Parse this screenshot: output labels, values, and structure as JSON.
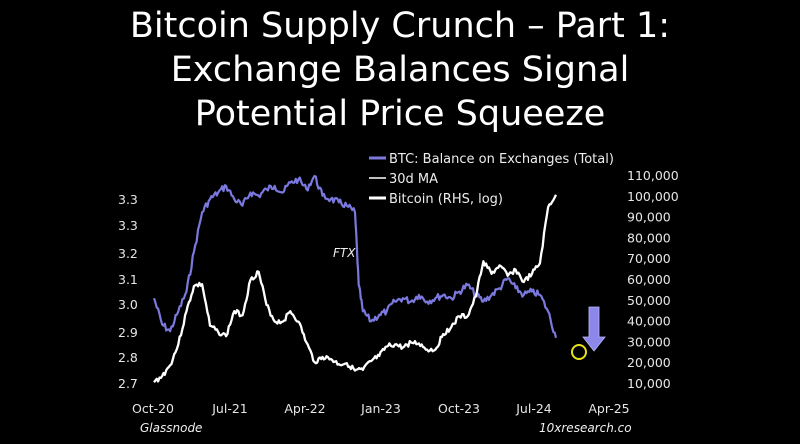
{
  "title": {
    "line1": "Bitcoin Supply Crunch – Part 1:",
    "line2": "Exchange Balances Signal",
    "line3": "Potential Price Squeeze"
  },
  "footer": {
    "source_left": "Glassnode",
    "source_right": "10xresearch.co"
  },
  "colors": {
    "balance": "#7b78de",
    "ma": "#ffffff",
    "price": "#ffffff",
    "arrow": "#8c87e8",
    "circle": "#e8e21a",
    "background": "#000000"
  },
  "chart_data": {
    "type": "line",
    "xlabel": "",
    "ylabel_left": "",
    "ylabel_right": "",
    "x_ticks": [
      "Oct-20",
      "Jul-21",
      "Apr-22",
      "Jan-23",
      "Oct-23",
      "Jul-24",
      "Apr-25"
    ],
    "y_left_ticks": [
      "2.7",
      "2.8",
      "2.9",
      "3.0",
      "3.1",
      "3.2",
      "3.3",
      "3.3"
    ],
    "y_right_ticks": [
      "10,000",
      "20,000",
      "30,000",
      "40,000",
      "50,000",
      "60,000",
      "70,000",
      "80,000",
      "90,000",
      "100,000",
      "110,000"
    ],
    "xlim": [
      "2020-10-01",
      "2025-04-01"
    ],
    "ylim_right": [
      10000,
      110000
    ],
    "grid": false,
    "legend": {
      "placement": "top-right",
      "entries": [
        "BTC: Balance on Exchanges (Total)",
        "30d MA",
        "Bitcoin (RHS, log)"
      ]
    },
    "annotations": [
      {
        "text": "FTX",
        "x": "2022-11-08"
      }
    ],
    "series": [
      {
        "name": "BTC: Balance on Exchanges (Total)",
        "axis": "left",
        "x": [
          "2020-10-01",
          "2020-11-01",
          "2020-12-01",
          "2021-01-01",
          "2021-02-01",
          "2021-03-01",
          "2021-04-01",
          "2021-05-01",
          "2021-06-01",
          "2021-07-01",
          "2021-08-01",
          "2021-09-01",
          "2021-10-01",
          "2021-11-01",
          "2021-12-01",
          "2022-01-01",
          "2022-02-01",
          "2022-03-01",
          "2022-04-01",
          "2022-05-01",
          "2022-06-01",
          "2022-07-01",
          "2022-08-01",
          "2022-09-01",
          "2022-10-01",
          "2022-11-01",
          "2022-11-15",
          "2022-12-01",
          "2023-01-01",
          "2023-02-01",
          "2023-03-01",
          "2023-04-01",
          "2023-05-01",
          "2023-06-01",
          "2023-07-01",
          "2023-08-01",
          "2023-09-01",
          "2023-10-01",
          "2023-11-01",
          "2023-12-01",
          "2024-01-01",
          "2024-02-01",
          "2024-03-01",
          "2024-04-01",
          "2024-05-01",
          "2024-06-01",
          "2024-07-01",
          "2024-08-01",
          "2024-09-01",
          "2024-10-01",
          "2024-11-01",
          "2024-12-01"
        ],
        "values": [
          2.96,
          2.88,
          2.86,
          2.92,
          2.98,
          3.1,
          3.22,
          3.26,
          3.28,
          3.3,
          3.26,
          3.24,
          3.28,
          3.27,
          3.29,
          3.3,
          3.28,
          3.31,
          3.32,
          3.29,
          3.33,
          3.27,
          3.26,
          3.25,
          3.24,
          3.22,
          3.0,
          2.92,
          2.89,
          2.91,
          2.92,
          2.95,
          2.96,
          2.95,
          2.97,
          2.95,
          2.96,
          2.97,
          2.96,
          2.98,
          3.0,
          2.97,
          2.95,
          2.97,
          2.99,
          3.02,
          2.99,
          2.97,
          2.98,
          2.97,
          2.92,
          2.84
        ]
      },
      {
        "name": "Bitcoin (RHS, log)",
        "axis": "right",
        "x": [
          "2020-10-01",
          "2020-11-01",
          "2020-12-01",
          "2021-01-01",
          "2021-02-01",
          "2021-03-01",
          "2021-04-01",
          "2021-05-01",
          "2021-06-01",
          "2021-07-01",
          "2021-08-01",
          "2021-09-01",
          "2021-10-01",
          "2021-11-01",
          "2021-12-01",
          "2022-01-01",
          "2022-02-01",
          "2022-03-01",
          "2022-04-01",
          "2022-05-01",
          "2022-06-01",
          "2022-07-01",
          "2022-08-01",
          "2022-09-01",
          "2022-10-01",
          "2022-11-01",
          "2022-12-01",
          "2023-01-01",
          "2023-02-01",
          "2023-03-01",
          "2023-04-01",
          "2023-05-01",
          "2023-06-01",
          "2023-07-01",
          "2023-08-01",
          "2023-09-01",
          "2023-10-01",
          "2023-11-01",
          "2023-12-01",
          "2024-01-01",
          "2024-02-01",
          "2024-03-01",
          "2024-04-01",
          "2024-05-01",
          "2024-06-01",
          "2024-07-01",
          "2024-08-01",
          "2024-09-01",
          "2024-10-01",
          "2024-11-01",
          "2024-12-01"
        ],
        "values": [
          10800,
          13800,
          19000,
          29000,
          45000,
          57000,
          58000,
          38000,
          35000,
          33000,
          45000,
          43000,
          60000,
          64000,
          48000,
          40000,
          40000,
          45000,
          40000,
          30000,
          20500,
          23000,
          22000,
          19500,
          20000,
          16500,
          16800,
          21000,
          23500,
          28000,
          29000,
          27500,
          30000,
          29500,
          26500,
          26500,
          34000,
          37500,
          42500,
          42500,
          52000,
          69000,
          63000,
          67000,
          62000,
          65000,
          59000,
          63000,
          68000,
          95000,
          101000
        ]
      }
    ]
  }
}
